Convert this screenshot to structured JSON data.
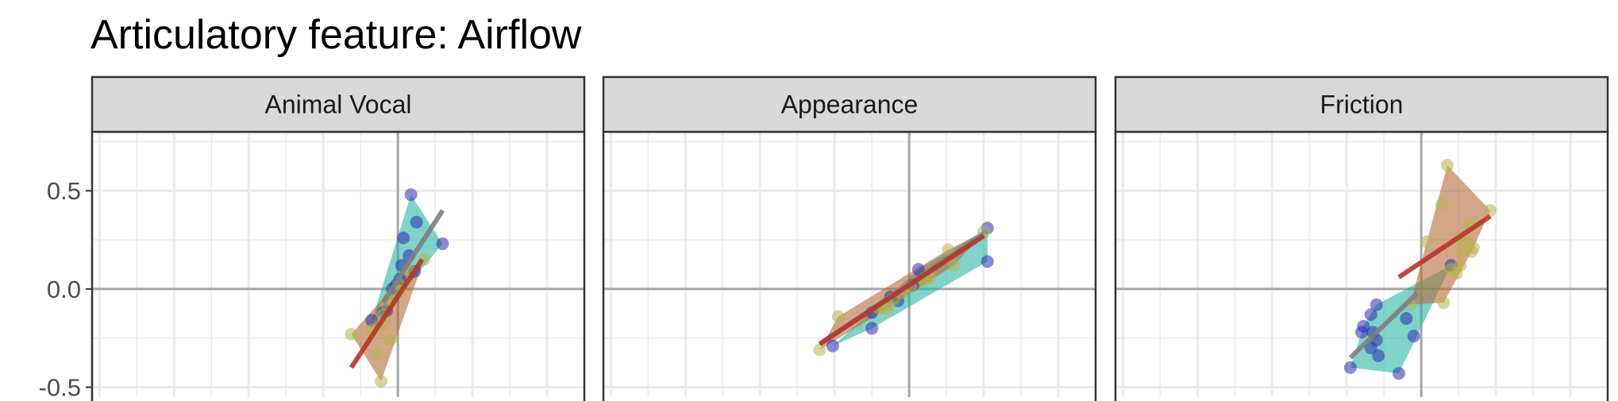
{
  "title": "Articulatory feature: Airflow",
  "colors": {
    "blue_points": "#2b2bb0",
    "olive_points": "#b5b44a",
    "teal_hull": "#2ab5a5",
    "brown_hull": "#b56a3a",
    "grey_line": "#7f7f7f",
    "red_line": "#b5352b",
    "strip_fill": "#d9d9d9",
    "grid": "#ebebeb",
    "zero_lines": "#a6a6a6"
  },
  "chart_data": {
    "type": "scatter",
    "title": "Articulatory feature: Airflow",
    "xlabel": "",
    "ylabel": "",
    "xlim": [
      -0.82,
      0.5
    ],
    "ylim": [
      -0.55,
      0.8
    ],
    "y_ticks": [
      0.5,
      0.0,
      -0.5
    ],
    "y_tick_labels": [
      "0.5",
      "0.0",
      "-0.5"
    ],
    "grid": true,
    "panels": [
      {
        "label": "Animal Vocal",
        "series": [
          {
            "points": [
              [
                0.035,
                0.48
              ],
              [
                0.12,
                0.23
              ],
              [
                0.05,
                0.34
              ],
              [
                0.015,
                0.26
              ],
              [
                0.03,
                0.17
              ],
              [
                0.01,
                0.12
              ],
              [
                0.045,
                0.09
              ],
              [
                0.005,
                0.05
              ],
              [
                -0.005,
                0.02
              ],
              [
                -0.015,
                0.0
              ],
              [
                -0.04,
                -0.12
              ],
              [
                -0.07,
                -0.16
              ],
              [
                -0.03,
                -0.11
              ]
            ]
          },
          {
            "points": [
              [
                0.07,
                0.15
              ],
              [
                0.03,
                0.1
              ],
              [
                0.005,
                0.02
              ],
              [
                0.005,
                -0.01
              ],
              [
                -0.02,
                -0.05
              ],
              [
                -0.03,
                -0.08
              ],
              [
                -0.04,
                -0.13
              ],
              [
                -0.035,
                -0.17
              ],
              [
                -0.05,
                -0.19
              ],
              [
                -0.07,
                -0.21
              ],
              [
                -0.125,
                -0.23
              ],
              [
                -0.02,
                -0.26
              ],
              [
                -0.055,
                -0.33
              ],
              [
                -0.045,
                -0.47
              ]
            ]
          }
        ],
        "fits": [
          {
            "from": [
              -0.04,
              -0.07
            ],
            "to": [
              0.12,
              0.4
            ]
          },
          {
            "from": [
              -0.125,
              -0.4
            ],
            "to": [
              0.065,
              0.15
            ]
          }
        ]
      },
      {
        "label": "Appearance",
        "series": [
          {
            "points": [
              [
                0.21,
                0.31
              ],
              [
                0.21,
                0.14
              ],
              [
                0.025,
                0.1
              ],
              [
                -0.03,
                -0.06
              ],
              [
                -0.1,
                -0.12
              ],
              [
                -0.1,
                -0.2
              ],
              [
                -0.205,
                -0.29
              ],
              [
                -0.05,
                -0.04
              ],
              [
                0.01,
                0.02
              ]
            ]
          },
          {
            "points": [
              [
                0.2,
                0.29
              ],
              [
                0.105,
                0.2
              ],
              [
                0.12,
                0.12
              ],
              [
                0.055,
                0.06
              ],
              [
                0.04,
                0.04
              ],
              [
                0.005,
                0.01
              ],
              [
                -0.02,
                -0.02
              ],
              [
                -0.04,
                -0.05
              ],
              [
                -0.055,
                -0.08
              ],
              [
                -0.08,
                -0.1
              ],
              [
                -0.06,
                -0.1
              ],
              [
                -0.19,
                -0.14
              ],
              [
                -0.24,
                -0.31
              ]
            ]
          }
        ],
        "fits": [
          {
            "from": [
              -0.24,
              -0.28
            ],
            "to": [
              0.2,
              0.28
            ]
          },
          {
            "from": [
              -0.24,
              -0.28
            ],
            "to": [
              0.2,
              0.27
            ]
          }
        ]
      },
      {
        "label": "Friction",
        "series": [
          {
            "points": [
              [
                -0.19,
                -0.4
              ],
              [
                -0.06,
                -0.43
              ],
              [
                -0.04,
                -0.15
              ],
              [
                -0.12,
                -0.08
              ],
              [
                -0.135,
                -0.13
              ],
              [
                -0.155,
                -0.19
              ],
              [
                -0.16,
                -0.22
              ],
              [
                -0.13,
                -0.22
              ],
              [
                -0.12,
                -0.26
              ],
              [
                -0.135,
                -0.3
              ],
              [
                -0.115,
                -0.34
              ],
              [
                -0.02,
                -0.24
              ],
              [
                0.08,
                0.12
              ]
            ]
          },
          {
            "points": [
              [
                0.07,
                0.63
              ],
              [
                0.185,
                0.4
              ],
              [
                0.055,
                0.43
              ],
              [
                0.015,
                0.24
              ],
              [
                0.1,
                0.26
              ],
              [
                0.13,
                0.33
              ],
              [
                0.12,
                0.24
              ],
              [
                0.14,
                0.21
              ],
              [
                0.11,
                0.19
              ],
              [
                0.135,
                0.19
              ],
              [
                0.105,
                0.12
              ],
              [
                0.08,
                0.1
              ],
              [
                0.095,
                0.08
              ],
              [
                0.06,
                -0.07
              ],
              [
                -0.03,
                -0.08
              ]
            ]
          }
        ],
        "fits": [
          {
            "from": [
              -0.19,
              -0.35
            ],
            "to": [
              -0.01,
              -0.02
            ]
          },
          {
            "from": [
              -0.06,
              0.06
            ],
            "to": [
              0.185,
              0.37
            ]
          }
        ]
      }
    ]
  }
}
